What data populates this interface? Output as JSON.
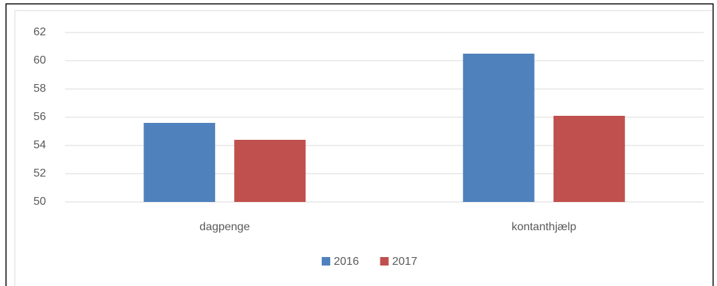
{
  "chart_data": {
    "type": "bar",
    "categories": [
      "dagpenge",
      "kontanthjælp"
    ],
    "series": [
      {
        "name": "2016",
        "color": "#4f81bd",
        "values": [
          55.6,
          60.5
        ]
      },
      {
        "name": "2017",
        "color": "#c0504d",
        "values": [
          54.4,
          56.1
        ]
      }
    ],
    "ylim": [
      50,
      62
    ],
    "yticks": [
      50,
      52,
      54,
      56,
      58,
      60,
      62
    ],
    "grid": true,
    "legend": "bottom"
  }
}
